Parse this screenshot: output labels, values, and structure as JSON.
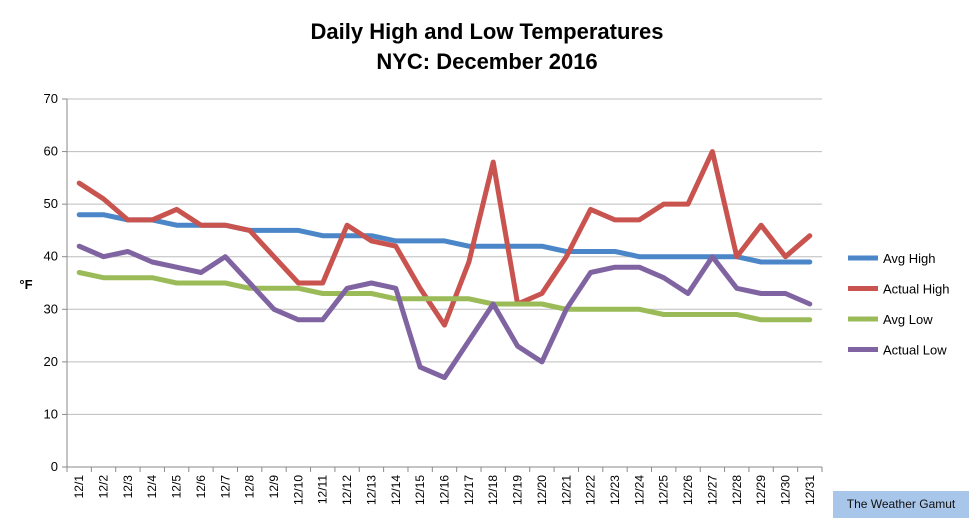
{
  "chart_data": {
    "type": "line",
    "title": "Daily High and Low Temperatures",
    "subtitle": "NYC: December 2016",
    "ylabel": "°F",
    "xlabel": "",
    "ylim": [
      0,
      70
    ],
    "yticks": [
      0,
      10,
      20,
      30,
      40,
      50,
      60,
      70
    ],
    "grid": true,
    "legend_position": "right",
    "categories": [
      "12/1",
      "12/2",
      "12/3",
      "12/4",
      "12/5",
      "12/6",
      "12/7",
      "12/8",
      "12/9",
      "12/10",
      "12/11",
      "12/12",
      "12/13",
      "12/14",
      "12/15",
      "12/16",
      "12/17",
      "12/18",
      "12/19",
      "12/20",
      "12/21",
      "12/22",
      "12/23",
      "12/24",
      "12/25",
      "12/26",
      "12/27",
      "12/28",
      "12/29",
      "12/30",
      "12/31"
    ],
    "series": [
      {
        "name": "Avg High",
        "color": "#4a86c8",
        "values": [
          48,
          48,
          47,
          47,
          46,
          46,
          46,
          45,
          45,
          45,
          44,
          44,
          44,
          43,
          43,
          43,
          42,
          42,
          42,
          42,
          41,
          41,
          41,
          40,
          40,
          40,
          40,
          40,
          39,
          39,
          39
        ]
      },
      {
        "name": "Actual High",
        "color": "#c9534f",
        "values": [
          54,
          51,
          47,
          47,
          49,
          46,
          46,
          45,
          40,
          35,
          35,
          46,
          43,
          42,
          34,
          27,
          39,
          58,
          31,
          33,
          40,
          49,
          47,
          47,
          50,
          50,
          60,
          40,
          46,
          40,
          44
        ]
      },
      {
        "name": "Avg Low",
        "color": "#9bbb59",
        "values": [
          37,
          36,
          36,
          36,
          35,
          35,
          35,
          34,
          34,
          34,
          33,
          33,
          33,
          32,
          32,
          32,
          32,
          31,
          31,
          31,
          30,
          30,
          30,
          30,
          29,
          29,
          29,
          29,
          28,
          28,
          28
        ]
      },
      {
        "name": "Actual Low",
        "color": "#8064a2",
        "values": [
          42,
          40,
          41,
          39,
          38,
          37,
          40,
          35,
          30,
          28,
          28,
          34,
          35,
          34,
          19,
          17,
          24,
          31,
          23,
          20,
          30,
          37,
          38,
          38,
          36,
          33,
          40,
          34,
          33,
          33,
          31
        ]
      }
    ]
  },
  "watermark": "The Weather Gamut"
}
